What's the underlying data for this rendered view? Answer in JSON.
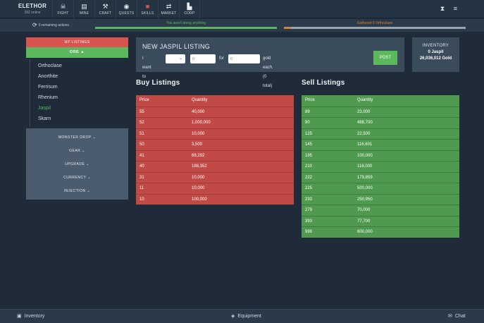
{
  "brand": {
    "name": "ELETHOR",
    "online": "392 online"
  },
  "nav": [
    {
      "icon": "skull-icon",
      "glyph": "☠",
      "label": "FIGHT"
    },
    {
      "icon": "map-icon",
      "glyph": "▤",
      "label": "MINE"
    },
    {
      "icon": "hammer-icon",
      "glyph": "⚒",
      "label": "CRAFT"
    },
    {
      "icon": "quests-icon",
      "glyph": "◉",
      "label": "QUESTS"
    },
    {
      "icon": "book-icon",
      "glyph": "■",
      "label": "SKILLS"
    },
    {
      "icon": "exchange-icon",
      "glyph": "⇄",
      "label": "MARKET"
    },
    {
      "icon": "factory-icon",
      "glyph": "▙",
      "label": "CORP"
    }
  ],
  "topright": {
    "hourglass": "⧗",
    "menu": "≡"
  },
  "actionbar": {
    "remaining": "0 remaining actions",
    "idle_label": "You aren't doing anything",
    "idle_progress": 1.0,
    "gather_label": "Gathered 0 Orthoclase",
    "gather_progress": 0.04
  },
  "sidebar": {
    "my_listings": "MY LISTINGS",
    "ore": "ORE ▲",
    "ores": [
      "Orthoclase",
      "Anorthite",
      "Ferrisum",
      "Rhenium",
      "Jaspil",
      "Skarn"
    ],
    "active_ore": "Jaspil",
    "categories": [
      "MONSTER DROP ⌄",
      "GEAR ⌄",
      "UPGRADE ⌄",
      "CURRENCY ⌄",
      "INJECTION ⌄"
    ]
  },
  "new_listing": {
    "title": "NEW JASPIL LISTING",
    "i_want_to": "I want to",
    "for": "for",
    "gold_each": "gold each. (0 total)",
    "qty_placeholder": "0",
    "price_placeholder": "0",
    "post": "POST"
  },
  "inventory": {
    "title": "INVENTORY",
    "item": "0 Jaspil",
    "gold": "26,036,012 Gold"
  },
  "buy": {
    "title": "Buy Listings",
    "headers": {
      "price": "Price",
      "quantity": "Quantity"
    },
    "rows": [
      {
        "price": "55",
        "quantity": "40,000"
      },
      {
        "price": "52",
        "quantity": "1,000,000"
      },
      {
        "price": "51",
        "quantity": "10,000"
      },
      {
        "price": "50",
        "quantity": "3,500"
      },
      {
        "price": "41",
        "quantity": "69,292"
      },
      {
        "price": "40",
        "quantity": "188,352"
      },
      {
        "price": "31",
        "quantity": "10,000"
      },
      {
        "price": "11",
        "quantity": "10,000"
      },
      {
        "price": "10",
        "quantity": "100,000"
      }
    ]
  },
  "sell": {
    "title": "Sell Listings",
    "headers": {
      "price": "Price",
      "quantity": "Quantity"
    },
    "rows": [
      {
        "price": "89",
        "quantity": "23,000"
      },
      {
        "price": "90",
        "quantity": "488,700"
      },
      {
        "price": "125",
        "quantity": "22,500"
      },
      {
        "price": "145",
        "quantity": "116,601"
      },
      {
        "price": "195",
        "quantity": "100,000"
      },
      {
        "price": "210",
        "quantity": "118,000"
      },
      {
        "price": "222",
        "quantity": "179,859"
      },
      {
        "price": "225",
        "quantity": "500,000"
      },
      {
        "price": "233",
        "quantity": "250,950"
      },
      {
        "price": "279",
        "quantity": "70,000"
      },
      {
        "price": "393",
        "quantity": "77,700"
      },
      {
        "price": "999",
        "quantity": "600,000"
      }
    ]
  },
  "footer": {
    "inventory": "Inventory",
    "equipment": "Equipment",
    "chat": "Chat"
  },
  "colors": {
    "red": "#d9534f",
    "green": "#5cb85c",
    "background": "#1f2b38",
    "panel": "#3a4b5c"
  }
}
